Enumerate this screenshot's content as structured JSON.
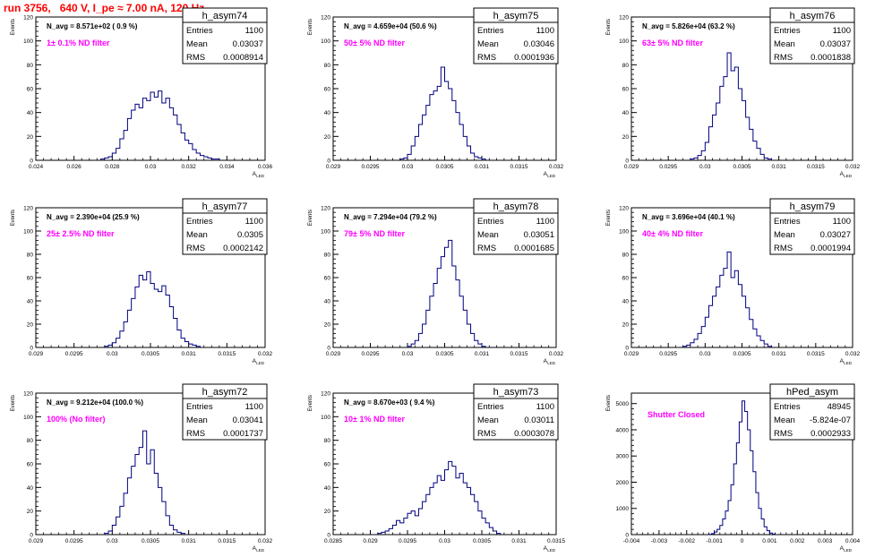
{
  "page_title": "run 3756,   640 V, I_pe ≈ 7.00 nA, 120 Hz",
  "colors": {
    "histogram": "#000080",
    "title": "#ff0000",
    "annotation": "#ff00ff",
    "axis": "#000000"
  },
  "stat_labels": {
    "entries": "Entries",
    "mean": "Mean",
    "rms": "RMS"
  },
  "axis_titles": {
    "x": "A",
    "x_sub": "LED",
    "y": "Events"
  },
  "chart_data": [
    {
      "type": "bar",
      "title": "h_asym74",
      "navg": "N_avg = 8.571e+02 ( 0.9 %)",
      "filter": "1± 0.1% ND filter",
      "entries": "1100",
      "mean": "0.03037",
      "rms": "0.0008914",
      "xlim": [
        0.024,
        0.036
      ],
      "ylim": [
        0,
        120
      ],
      "xticks": [
        0.024,
        0.026,
        0.028,
        0.03,
        0.032,
        0.034,
        0.036
      ],
      "xtick_labels": [
        "0.024",
        "0.026",
        "0.028",
        "0.03",
        "0.032",
        "0.034",
        "0.036"
      ],
      "yticks": [
        0,
        20,
        40,
        60,
        80,
        100,
        120
      ],
      "ytick_labels": [
        "0",
        "20",
        "40",
        "60",
        "80",
        "100",
        "120"
      ],
      "bins": {
        "x": [
          0.0274,
          0.0276,
          0.0278,
          0.028,
          0.0282,
          0.0284,
          0.0286,
          0.0288,
          0.029,
          0.0292,
          0.0294,
          0.0296,
          0.0298,
          0.03,
          0.0302,
          0.0304,
          0.0306,
          0.0308,
          0.031,
          0.0312,
          0.0314,
          0.0316,
          0.0318,
          0.032,
          0.0322,
          0.0324,
          0.0326,
          0.0328,
          0.033,
          0.0332,
          0.0334
        ],
        "y": [
          1,
          2,
          3,
          6,
          10,
          18,
          25,
          35,
          42,
          47,
          44,
          52,
          50,
          57,
          53,
          58,
          48,
          52,
          44,
          38,
          30,
          23,
          17,
          14,
          9,
          6,
          4,
          3,
          2,
          1,
          1
        ]
      }
    },
    {
      "type": "bar",
      "title": "h_asym75",
      "navg": "N_avg = 4.659e+04 (50.6 %)",
      "filter": "50± 5% ND filter",
      "entries": "1100",
      "mean": "0.03046",
      "rms": "0.0001936",
      "xlim": [
        0.029,
        0.032
      ],
      "ylim": [
        0,
        120
      ],
      "xticks": [
        0.029,
        0.0295,
        0.03,
        0.0305,
        0.031,
        0.0315,
        0.032
      ],
      "xtick_labels": [
        "0.029",
        "0.0295",
        "0.03",
        "0.0305",
        "0.031",
        "0.0315",
        "0.032"
      ],
      "yticks": [
        0,
        20,
        40,
        60,
        80,
        100,
        120
      ],
      "ytick_labels": [
        "0",
        "20",
        "40",
        "60",
        "80",
        "100",
        "120"
      ],
      "bins": {
        "x": [
          0.0299,
          0.02995,
          0.03,
          0.03005,
          0.0301,
          0.03015,
          0.0302,
          0.03025,
          0.0303,
          0.03035,
          0.0304,
          0.03045,
          0.0305,
          0.03055,
          0.0306,
          0.03065,
          0.0307,
          0.03075,
          0.0308,
          0.03085,
          0.0309,
          0.03095,
          0.031
        ],
        "y": [
          1,
          2,
          5,
          12,
          20,
          30,
          38,
          46,
          55,
          58,
          62,
          78,
          66,
          60,
          50,
          40,
          30,
          20,
          12,
          6,
          3,
          2,
          1
        ]
      }
    },
    {
      "type": "bar",
      "title": "h_asym76",
      "navg": "N_avg = 5.826e+04 (63.2 %)",
      "filter": "63± 5% ND filter",
      "entries": "1100",
      "mean": "0.03037",
      "rms": "0.0001838",
      "xlim": [
        0.029,
        0.032
      ],
      "ylim": [
        0,
        120
      ],
      "xticks": [
        0.029,
        0.0295,
        0.03,
        0.0305,
        0.031,
        0.0315,
        0.032
      ],
      "xtick_labels": [
        "0.029",
        "0.0295",
        "0.03",
        "0.0305",
        "0.031",
        "0.0315",
        "0.032"
      ],
      "yticks": [
        0,
        20,
        40,
        60,
        80,
        100,
        120
      ],
      "ytick_labels": [
        "0",
        "20",
        "40",
        "60",
        "80",
        "100",
        "120"
      ],
      "bins": {
        "x": [
          0.0298,
          0.02985,
          0.0299,
          0.02995,
          0.03,
          0.03005,
          0.0301,
          0.03015,
          0.0302,
          0.03025,
          0.0303,
          0.03035,
          0.0304,
          0.03045,
          0.0305,
          0.03055,
          0.0306,
          0.03065,
          0.0307,
          0.03075,
          0.0308,
          0.03085
        ],
        "y": [
          1,
          2,
          4,
          8,
          15,
          28,
          38,
          48,
          62,
          70,
          90,
          75,
          78,
          60,
          50,
          36,
          26,
          16,
          10,
          5,
          2,
          1
        ]
      }
    },
    {
      "type": "bar",
      "title": "h_asym77",
      "navg": "N_avg = 2.390e+04 (25.9 %)",
      "filter": "25± 2.5% ND filter",
      "entries": "1100",
      "mean": "0.0305",
      "rms": "0.0002142",
      "xlim": [
        0.029,
        0.032
      ],
      "ylim": [
        0,
        120
      ],
      "xticks": [
        0.029,
        0.0295,
        0.03,
        0.0305,
        0.031,
        0.0315,
        0.032
      ],
      "xtick_labels": [
        "0.029",
        "0.0295",
        "0.03",
        "0.0305",
        "0.031",
        "0.0315",
        "0.032"
      ],
      "yticks": [
        0,
        20,
        40,
        60,
        80,
        100,
        120
      ],
      "ytick_labels": [
        "0",
        "20",
        "40",
        "60",
        "80",
        "100",
        "120"
      ],
      "bins": {
        "x": [
          0.0299,
          0.02995,
          0.03,
          0.03005,
          0.0301,
          0.03015,
          0.0302,
          0.03025,
          0.0303,
          0.03035,
          0.0304,
          0.03045,
          0.0305,
          0.03055,
          0.0306,
          0.03065,
          0.0307,
          0.03075,
          0.0308,
          0.03085,
          0.0309,
          0.03095,
          0.031,
          0.03105,
          0.0311
        ],
        "y": [
          1,
          2,
          4,
          8,
          14,
          22,
          32,
          42,
          52,
          62,
          58,
          65,
          55,
          50,
          48,
          53,
          45,
          35,
          25,
          15,
          8,
          5,
          3,
          2,
          1
        ]
      }
    },
    {
      "type": "bar",
      "title": "h_asym78",
      "navg": "N_avg = 7.294e+04 (79.2 %)",
      "filter": "79± 5% ND filter",
      "entries": "1100",
      "mean": "0.03051",
      "rms": "0.0001685",
      "xlim": [
        0.029,
        0.032
      ],
      "ylim": [
        0,
        120
      ],
      "xticks": [
        0.029,
        0.0295,
        0.03,
        0.0305,
        0.031,
        0.0315,
        0.032
      ],
      "xtick_labels": [
        "0.029",
        "0.0295",
        "0.03",
        "0.0305",
        "0.031",
        "0.0315",
        "0.032"
      ],
      "yticks": [
        0,
        20,
        40,
        60,
        80,
        100,
        120
      ],
      "ytick_labels": [
        "0",
        "20",
        "40",
        "60",
        "80",
        "100",
        "120"
      ],
      "bins": {
        "x": [
          0.03,
          0.03005,
          0.0301,
          0.03015,
          0.0302,
          0.03025,
          0.0303,
          0.03035,
          0.0304,
          0.03045,
          0.0305,
          0.03055,
          0.0306,
          0.03065,
          0.0307,
          0.03075,
          0.0308,
          0.03085,
          0.0309,
          0.03095,
          0.031
        ],
        "y": [
          1,
          3,
          6,
          12,
          20,
          32,
          44,
          55,
          68,
          78,
          86,
          92,
          70,
          58,
          44,
          32,
          20,
          12,
          6,
          3,
          1
        ]
      }
    },
    {
      "type": "bar",
      "title": "h_asym79",
      "navg": "N_avg = 3.696e+04 (40.1 %)",
      "filter": "40± 4% ND filter",
      "entries": "1100",
      "mean": "0.03027",
      "rms": "0.0001994",
      "xlim": [
        0.029,
        0.032
      ],
      "ylim": [
        0,
        120
      ],
      "xticks": [
        0.029,
        0.0295,
        0.03,
        0.0305,
        0.031,
        0.0315,
        0.032
      ],
      "xtick_labels": [
        "0.029",
        "0.0295",
        "0.03",
        "0.0305",
        "0.031",
        "0.0315",
        "0.032"
      ],
      "yticks": [
        0,
        20,
        40,
        60,
        80,
        100,
        120
      ],
      "ytick_labels": [
        "0",
        "20",
        "40",
        "60",
        "80",
        "100",
        "120"
      ],
      "bins": {
        "x": [
          0.0297,
          0.02975,
          0.0298,
          0.02985,
          0.0299,
          0.02995,
          0.03,
          0.03005,
          0.0301,
          0.03015,
          0.0302,
          0.03025,
          0.0303,
          0.03035,
          0.0304,
          0.03045,
          0.0305,
          0.03055,
          0.0306,
          0.03065,
          0.0307,
          0.03075,
          0.0308,
          0.03085
        ],
        "y": [
          1,
          2,
          4,
          7,
          12,
          18,
          26,
          36,
          44,
          52,
          62,
          68,
          82,
          60,
          66,
          54,
          44,
          34,
          24,
          16,
          10,
          6,
          3,
          1
        ]
      }
    },
    {
      "type": "bar",
      "title": "h_asym72",
      "navg": "N_avg = 9.212e+04 (100.0 %)",
      "filter": "100% (No filter)",
      "entries": "1100",
      "mean": "0.03041",
      "rms": "0.0001737",
      "xlim": [
        0.029,
        0.032
      ],
      "ylim": [
        0,
        120
      ],
      "xticks": [
        0.029,
        0.0295,
        0.03,
        0.0305,
        0.031,
        0.0315,
        0.032
      ],
      "xtick_labels": [
        "0.029",
        "0.0295",
        "0.03",
        "0.0305",
        "0.031",
        "0.0315",
        "0.032"
      ],
      "yticks": [
        0,
        20,
        40,
        60,
        80,
        100,
        120
      ],
      "ytick_labels": [
        "0",
        "20",
        "40",
        "60",
        "80",
        "100",
        "120"
      ],
      "bins": {
        "x": [
          0.0299,
          0.02995,
          0.03,
          0.03005,
          0.0301,
          0.03015,
          0.0302,
          0.03025,
          0.0303,
          0.03035,
          0.0304,
          0.03045,
          0.0305,
          0.03055,
          0.0306,
          0.03065,
          0.0307,
          0.03075,
          0.0308,
          0.03085,
          0.0309
        ],
        "y": [
          1,
          3,
          8,
          15,
          24,
          35,
          48,
          58,
          68,
          74,
          88,
          60,
          72,
          52,
          40,
          28,
          16,
          8,
          4,
          2,
          1
        ]
      }
    },
    {
      "type": "bar",
      "title": "h_asym73",
      "navg": "N_avg = 8.670e+03 ( 9.4 %)",
      "filter": "10± 1% ND filter",
      "entries": "1100",
      "mean": "0.03011",
      "rms": "0.0003078",
      "xlim": [
        0.0285,
        0.0315
      ],
      "ylim": [
        0,
        120
      ],
      "xticks": [
        0.0285,
        0.029,
        0.0295,
        0.03,
        0.0305,
        0.031,
        0.0315
      ],
      "xtick_labels": [
        "0.0285",
        "0.029",
        "0.0295",
        "0.03",
        "0.0305",
        "0.031",
        "0.0315"
      ],
      "yticks": [
        0,
        20,
        40,
        60,
        80,
        100,
        120
      ],
      "ytick_labels": [
        "0",
        "20",
        "40",
        "60",
        "80",
        "100",
        "120"
      ],
      "bins": {
        "x": [
          0.0291,
          0.02915,
          0.0292,
          0.02925,
          0.0293,
          0.02935,
          0.0294,
          0.02945,
          0.0295,
          0.02955,
          0.0296,
          0.02965,
          0.0297,
          0.02975,
          0.0298,
          0.02985,
          0.0299,
          0.02995,
          0.03,
          0.03005,
          0.0301,
          0.03015,
          0.0302,
          0.03025,
          0.0303,
          0.03035,
          0.0304,
          0.03045,
          0.0305,
          0.03055,
          0.0306,
          0.03065,
          0.0307
        ],
        "y": [
          1,
          2,
          3,
          5,
          8,
          12,
          10,
          14,
          18,
          20,
          16,
          22,
          28,
          34,
          40,
          44,
          50,
          46,
          55,
          62,
          58,
          48,
          52,
          44,
          40,
          34,
          28,
          20,
          14,
          10,
          6,
          3,
          1
        ]
      }
    },
    {
      "type": "bar",
      "title": "hPed_asym",
      "navg": "",
      "filter": "Shutter Closed",
      "entries": "48945",
      "mean": "-5.824e-07",
      "rms": "0.0002933",
      "xlim": [
        -0.004,
        0.004
      ],
      "ylim": [
        0,
        5400
      ],
      "xticks": [
        -0.004,
        -0.003,
        -0.002,
        -0.001,
        0,
        0.001,
        0.002,
        0.003,
        0.004
      ],
      "xtick_labels": [
        "-0.004",
        "-0.003",
        "-0.002",
        "-0.001",
        "0",
        "0.001",
        "0.002",
        "0.003",
        "0.004"
      ],
      "yticks": [
        0,
        1000,
        2000,
        3000,
        4000,
        5000
      ],
      "ytick_labels": [
        "0",
        "1000",
        "2000",
        "3000",
        "4000",
        "5000"
      ],
      "bins": {
        "x": [
          -0.0012,
          -0.0011,
          -0.001,
          -0.0009,
          -0.0008,
          -0.0007,
          -0.0006,
          -0.0005,
          -0.0004,
          -0.0003,
          -0.0002,
          -0.0001,
          0,
          0.0001,
          0.0002,
          0.0003,
          0.0004,
          0.0005,
          0.0006,
          0.0007,
          0.0008,
          0.0009,
          0.001,
          0.0011
        ],
        "y": [
          10,
          40,
          100,
          200,
          350,
          600,
          900,
          1300,
          1900,
          2700,
          3500,
          4300,
          5100,
          4700,
          4000,
          3200,
          2400,
          1600,
          1000,
          600,
          300,
          150,
          60,
          20
        ]
      }
    }
  ]
}
